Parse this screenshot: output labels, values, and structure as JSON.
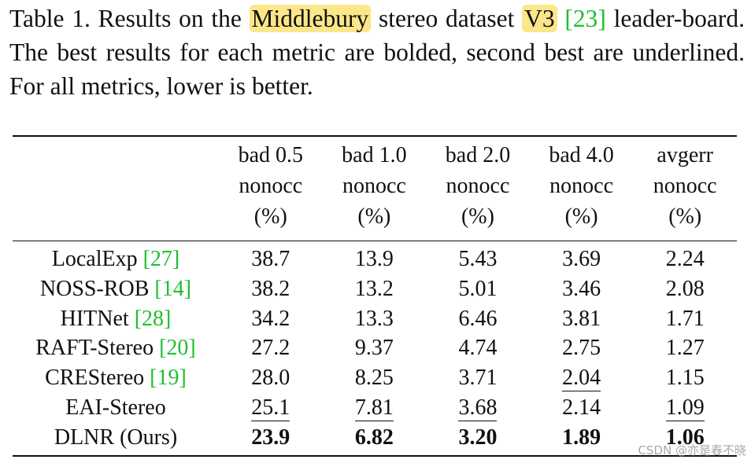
{
  "caption": {
    "prefix": "Table 1. Results on the ",
    "highlight1": "Middlebury",
    "middle": " stereo dataset ",
    "highlight2": "V3",
    "space": " ",
    "cite": "[23]",
    "suffix": " leader-board. The best results for each metric are bolded, second best are underlined. For all metrics, lower is better."
  },
  "table": {
    "headers": [
      {
        "line1": "bad 0.5",
        "line2": "nonocc",
        "line3": "(%)"
      },
      {
        "line1": "bad 1.0",
        "line2": "nonocc",
        "line3": "(%)"
      },
      {
        "line1": "bad 2.0",
        "line2": "nonocc",
        "line3": "(%)"
      },
      {
        "line1": "bad 4.0",
        "line2": "nonocc",
        "line3": "(%)"
      },
      {
        "line1": "avgerr",
        "line2": "nonocc",
        "line3": "(%)"
      }
    ],
    "rows": [
      {
        "method": "LocalExp",
        "cite": "[27]",
        "values": [
          "38.7",
          "13.9",
          "5.43",
          "3.69",
          "2.24"
        ]
      },
      {
        "method": "NOSS-ROB",
        "cite": "[14]",
        "values": [
          "38.2",
          "13.2",
          "5.01",
          "3.46",
          "2.08"
        ]
      },
      {
        "method": "HITNet",
        "cite": "[28]",
        "values": [
          "34.2",
          "13.3",
          "6.46",
          "3.81",
          "1.71"
        ]
      },
      {
        "method": "RAFT-Stereo",
        "cite": "[20]",
        "values": [
          "27.2",
          "9.37",
          "4.74",
          "2.75",
          "1.27"
        ]
      },
      {
        "method": "CREStereo",
        "cite": "[19]",
        "values": [
          "28.0",
          "8.25",
          "3.71",
          "2.04",
          "1.15"
        ]
      },
      {
        "method": "EAI-Stereo",
        "cite": "",
        "values": [
          "25.1",
          "7.81",
          "3.68",
          "2.14",
          "1.09"
        ]
      },
      {
        "method": "DLNR (Ours)",
        "cite": "",
        "values": [
          "23.9",
          "6.82",
          "3.20",
          "1.89",
          "1.06"
        ]
      }
    ]
  },
  "watermark": "CSDN @亦是春不晓"
}
